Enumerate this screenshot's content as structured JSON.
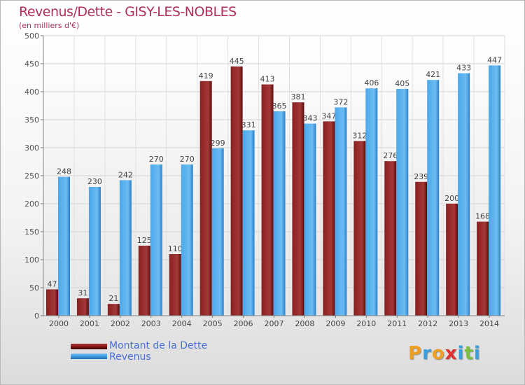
{
  "chart_data": {
    "type": "bar",
    "title": "Revenus/Dette - GISY-LES-NOBLES",
    "subtitle": "(en milliers d'€)",
    "categories": [
      "2000",
      "2001",
      "2002",
      "2003",
      "2004",
      "2005",
      "2006",
      "2007",
      "2008",
      "2009",
      "2010",
      "2011",
      "2012",
      "2013",
      "2014"
    ],
    "series": [
      {
        "name": "Montant de la Dette",
        "color": "#8b1a1a",
        "values": [
          47,
          31,
          21,
          125,
          110,
          419,
          445,
          413,
          381,
          347,
          312,
          276,
          239,
          200,
          168
        ]
      },
      {
        "name": "Revenus",
        "color": "#3f9fe6",
        "values": [
          248,
          230,
          242,
          270,
          270,
          299,
          331,
          365,
          343,
          372,
          406,
          405,
          421,
          433,
          447
        ]
      }
    ],
    "ylim": [
      0,
      500
    ],
    "yticks": [
      0,
      50,
      100,
      150,
      200,
      250,
      300,
      350,
      400,
      450,
      500
    ],
    "grid": true,
    "legend": "bottom-left"
  },
  "logo": {
    "letters": [
      "P",
      "r",
      "o",
      "x",
      "i",
      "t",
      "i"
    ],
    "colors": [
      "#f0a020",
      "#3aa0e0",
      "#f0a020",
      "#e03030",
      "#3aa0e0",
      "#7cc040",
      "#3aa0e0"
    ]
  }
}
